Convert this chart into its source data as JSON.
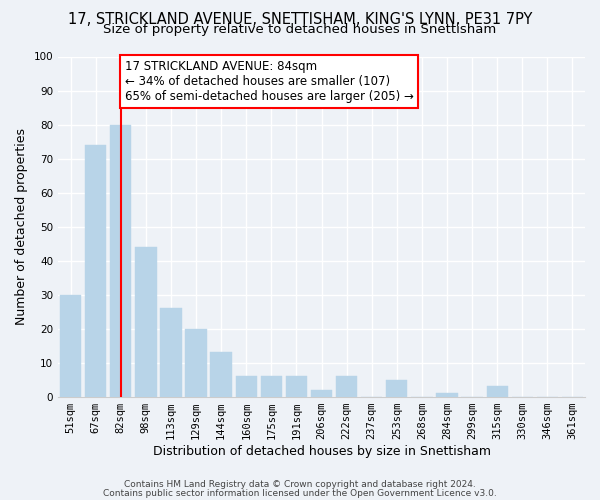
{
  "title_line1": "17, STRICKLAND AVENUE, SNETTISHAM, KING'S LYNN, PE31 7PY",
  "title_line2": "Size of property relative to detached houses in Snettisham",
  "xlabel": "Distribution of detached houses by size in Snettisham",
  "ylabel": "Number of detached properties",
  "footer_line1": "Contains HM Land Registry data © Crown copyright and database right 2024.",
  "footer_line2": "Contains public sector information licensed under the Open Government Licence v3.0.",
  "bar_labels": [
    "51sqm",
    "67sqm",
    "82sqm",
    "98sqm",
    "113sqm",
    "129sqm",
    "144sqm",
    "160sqm",
    "175sqm",
    "191sqm",
    "206sqm",
    "222sqm",
    "237sqm",
    "253sqm",
    "268sqm",
    "284sqm",
    "299sqm",
    "315sqm",
    "330sqm",
    "346sqm",
    "361sqm"
  ],
  "bar_values": [
    30,
    74,
    80,
    44,
    26,
    20,
    13,
    6,
    6,
    6,
    2,
    6,
    0,
    5,
    0,
    1,
    0,
    3,
    0,
    0,
    0
  ],
  "bar_color": "#b8d4e8",
  "red_line_index": 2,
  "ylim": [
    0,
    100
  ],
  "yticks": [
    0,
    10,
    20,
    30,
    40,
    50,
    60,
    70,
    80,
    90,
    100
  ],
  "annotation_title": "17 STRICKLAND AVENUE: 84sqm",
  "annotation_line1": "← 34% of detached houses are smaller (107)",
  "annotation_line2": "65% of semi-detached houses are larger (205) →",
  "bg_color": "#eef2f7",
  "grid_color": "#ffffff",
  "title_fontsize": 10.5,
  "subtitle_fontsize": 9.5,
  "axis_label_fontsize": 9,
  "tick_fontsize": 7.5,
  "annotation_fontsize": 8.5
}
